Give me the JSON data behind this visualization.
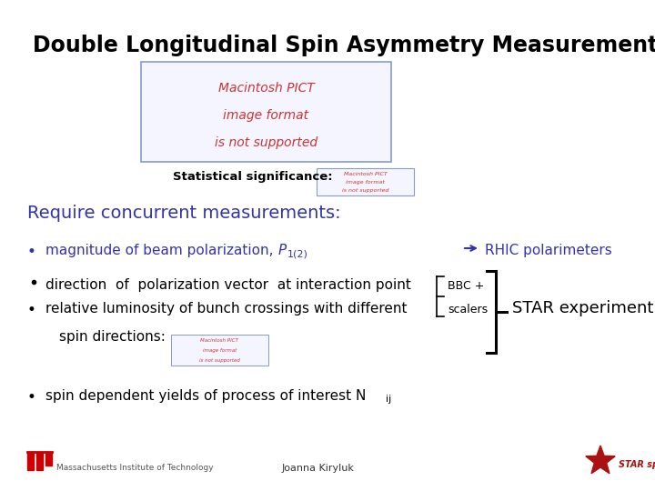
{
  "title": "Double Longitudinal Spin Asymmetry Measurements",
  "title_fontsize": 17,
  "bg_color": "#ffffff",
  "text_color": "#000000",
  "blue_color": "#3333aa",
  "red_color": "#cc2222",
  "stat_sig_label": "Statistical significance:",
  "require_text": "Require concurrent measurements:",
  "bullet1": "magnitude of beam polarization,",
  "bullet1_P": "P",
  "bullet1_sub": "1(2)",
  "bullet2": "direction  of  polarization vector  at interaction point",
  "bullet3": "relative luminosity of bunch crossings with different",
  "bullet3b": "spin directions:",
  "bullet4": "spin dependent yields of process of interest N",
  "bullet4_sub": "ij",
  "rhic_text": "RHIC polarimeters",
  "bbc_text": "BBC +",
  "scalers_text": "scalers",
  "star_text": "STAR experiment",
  "mit_text": "Massachusetts Institute of Technology",
  "joanna_text": "Joanna Kiryluk",
  "pict_box_text": [
    "Macintosh PICT",
    "image format",
    "is not supported"
  ],
  "pict_small_text": [
    "Macintosh PICT",
    "image format",
    "is not supported"
  ],
  "pict_tiny_text": [
    "Macintosh PICT",
    "image format",
    "is not supported"
  ]
}
